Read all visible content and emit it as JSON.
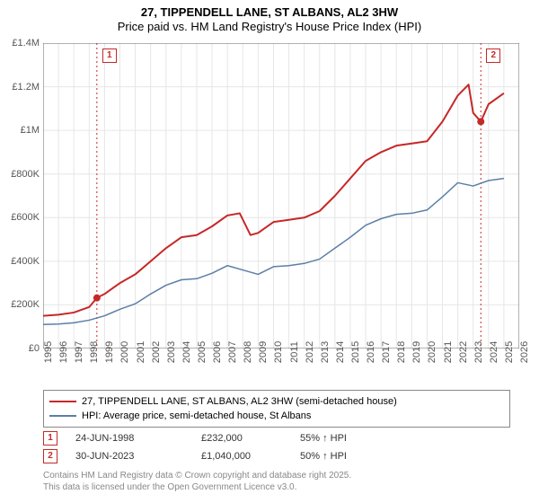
{
  "title": {
    "line1": "27, TIPPENDELL LANE, ST ALBANS, AL2 3HW",
    "line2": "Price paid vs. HM Land Registry's House Price Index (HPI)",
    "fontsize": 13
  },
  "chart": {
    "type": "line",
    "background_color": "#ffffff",
    "grid_color": "#e6e6e6",
    "axis_color": "#666666",
    "xlim": [
      1995,
      2026
    ],
    "ylim": [
      0,
      1400000
    ],
    "ytick_step": 200000,
    "yticks": [
      "£0",
      "£200K",
      "£400K",
      "£600K",
      "£800K",
      "£1M",
      "£1.2M",
      "£1.4M"
    ],
    "xticks": [
      1995,
      1996,
      1997,
      1998,
      1999,
      2000,
      2001,
      2002,
      2003,
      2004,
      2005,
      2006,
      2007,
      2008,
      2009,
      2010,
      2011,
      2012,
      2013,
      2014,
      2015,
      2016,
      2017,
      2018,
      2019,
      2020,
      2021,
      2022,
      2023,
      2024,
      2025,
      2026
    ],
    "series": [
      {
        "name": "27, TIPPENDELL LANE, ST ALBANS, AL2 3HW (semi-detached house)",
        "color": "#c62828",
        "line_width": 2,
        "data": [
          [
            1995,
            150000
          ],
          [
            1996,
            155000
          ],
          [
            1997,
            165000
          ],
          [
            1998,
            190000
          ],
          [
            1998.5,
            232000
          ],
          [
            1999,
            250000
          ],
          [
            2000,
            300000
          ],
          [
            2001,
            340000
          ],
          [
            2002,
            400000
          ],
          [
            2003,
            460000
          ],
          [
            2004,
            510000
          ],
          [
            2005,
            520000
          ],
          [
            2006,
            560000
          ],
          [
            2007,
            610000
          ],
          [
            2007.8,
            620000
          ],
          [
            2008.5,
            520000
          ],
          [
            2009,
            530000
          ],
          [
            2010,
            580000
          ],
          [
            2011,
            590000
          ],
          [
            2012,
            600000
          ],
          [
            2013,
            630000
          ],
          [
            2014,
            700000
          ],
          [
            2015,
            780000
          ],
          [
            2016,
            860000
          ],
          [
            2017,
            900000
          ],
          [
            2018,
            930000
          ],
          [
            2019,
            940000
          ],
          [
            2020,
            950000
          ],
          [
            2021,
            1040000
          ],
          [
            2022,
            1160000
          ],
          [
            2022.7,
            1210000
          ],
          [
            2023,
            1080000
          ],
          [
            2023.5,
            1040000
          ],
          [
            2024,
            1120000
          ],
          [
            2025,
            1170000
          ]
        ]
      },
      {
        "name": "HPI: Average price, semi-detached house, St Albans",
        "color": "#5b7fa6",
        "line_width": 1.5,
        "data": [
          [
            1995,
            110000
          ],
          [
            1996,
            112000
          ],
          [
            1997,
            118000
          ],
          [
            1998,
            130000
          ],
          [
            1999,
            150000
          ],
          [
            2000,
            180000
          ],
          [
            2001,
            205000
          ],
          [
            2002,
            250000
          ],
          [
            2003,
            290000
          ],
          [
            2004,
            315000
          ],
          [
            2005,
            320000
          ],
          [
            2006,
            345000
          ],
          [
            2007,
            380000
          ],
          [
            2008,
            360000
          ],
          [
            2009,
            340000
          ],
          [
            2010,
            375000
          ],
          [
            2011,
            380000
          ],
          [
            2012,
            390000
          ],
          [
            2013,
            410000
          ],
          [
            2014,
            460000
          ],
          [
            2015,
            510000
          ],
          [
            2016,
            565000
          ],
          [
            2017,
            595000
          ],
          [
            2018,
            615000
          ],
          [
            2019,
            620000
          ],
          [
            2020,
            635000
          ],
          [
            2021,
            695000
          ],
          [
            2022,
            760000
          ],
          [
            2023,
            745000
          ],
          [
            2024,
            770000
          ],
          [
            2025,
            780000
          ]
        ]
      }
    ],
    "sale_markers": [
      {
        "label": "1",
        "x": 1998.5,
        "y": 232000,
        "line_color": "#c62828"
      },
      {
        "label": "2",
        "x": 2023.5,
        "y": 1040000,
        "line_color": "#c62828"
      }
    ],
    "sale_dot_color": "#c62828",
    "sale_dot_radius": 4
  },
  "legend": {
    "items": [
      {
        "color": "#c62828",
        "label": "27, TIPPENDELL LANE, ST ALBANS, AL2 3HW (semi-detached house)"
      },
      {
        "color": "#5b7fa6",
        "label": "HPI: Average price, semi-detached house, St Albans"
      }
    ]
  },
  "sales_table": {
    "rows": [
      {
        "marker": "1",
        "date": "24-JUN-1998",
        "price": "£232,000",
        "hpi": "55% ↑ HPI"
      },
      {
        "marker": "2",
        "date": "30-JUN-2023",
        "price": "£1,040,000",
        "hpi": "50% ↑ HPI"
      }
    ]
  },
  "footer": {
    "line1": "Contains HM Land Registry data © Crown copyright and database right 2025.",
    "line2": "This data is licensed under the Open Government Licence v3.0."
  }
}
